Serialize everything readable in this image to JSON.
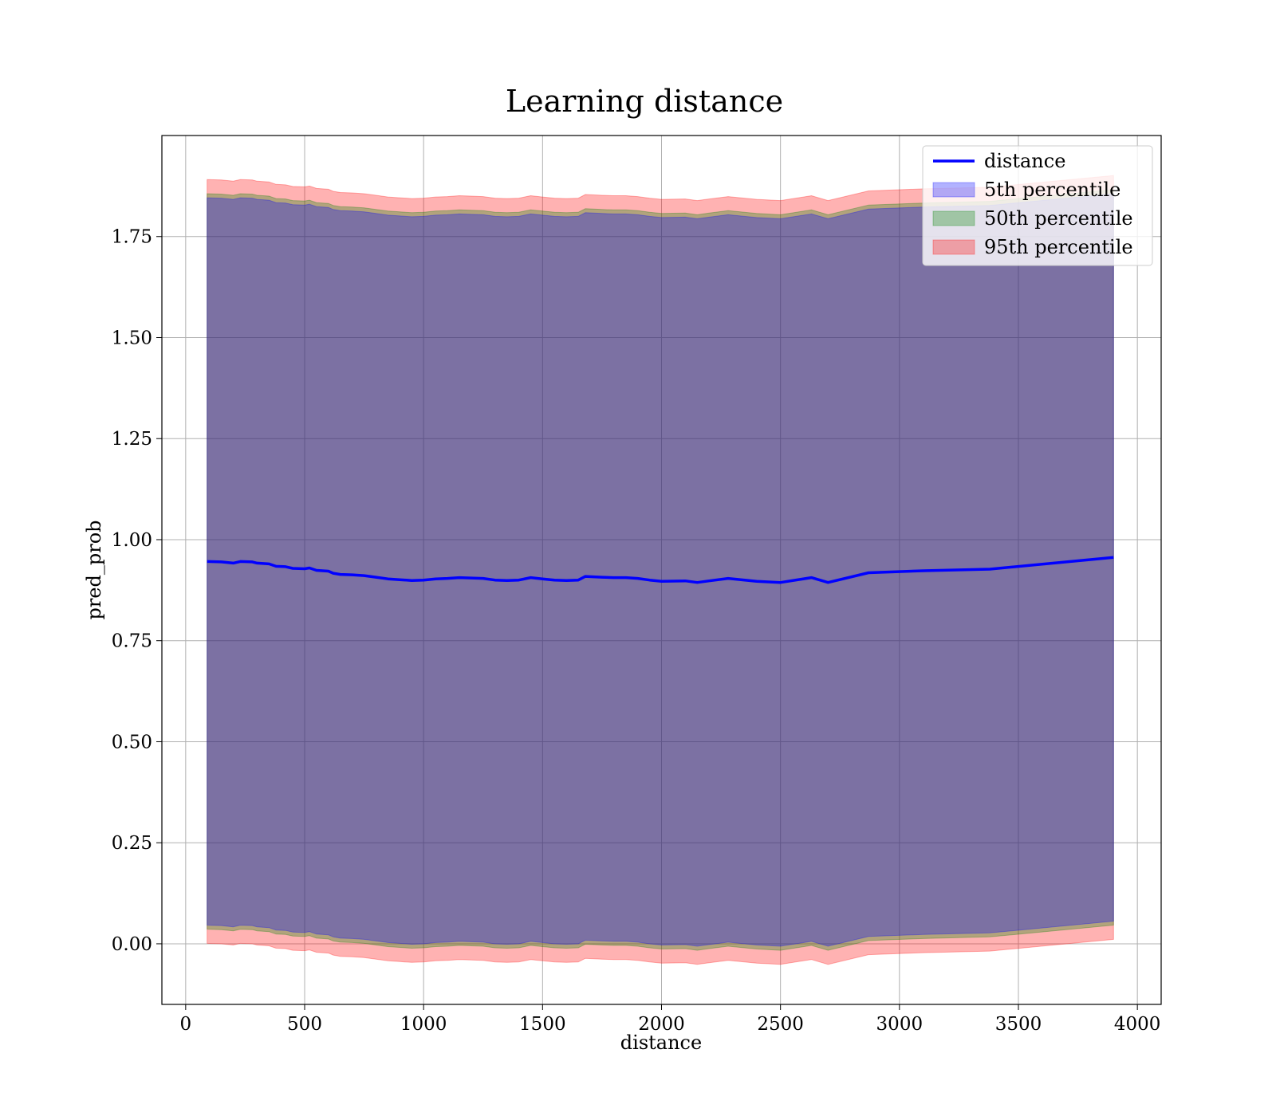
{
  "chart_data": {
    "type": "line",
    "title": "Learning distance",
    "xlabel": "distance",
    "ylabel": "pred_prob",
    "xlim": [
      -100,
      4100
    ],
    "ylim": [
      -0.15,
      2.0
    ],
    "xticks": [
      0,
      500,
      1000,
      1500,
      2000,
      2500,
      3000,
      3500,
      4000
    ],
    "xtick_labels": [
      "0",
      "500",
      "1000",
      "1500",
      "2000",
      "2500",
      "3000",
      "3500",
      "4000"
    ],
    "yticks": [
      0.0,
      0.25,
      0.5,
      0.75,
      1.0,
      1.25,
      1.5,
      1.75
    ],
    "ytick_labels": [
      "0.00",
      "0.25",
      "0.50",
      "0.75",
      "1.00",
      "1.25",
      "1.50",
      "1.75"
    ],
    "grid": true,
    "legend_position": "top-right",
    "x": [
      90,
      150,
      200,
      230,
      280,
      300,
      350,
      380,
      420,
      450,
      500,
      520,
      550,
      600,
      620,
      650,
      700,
      750,
      800,
      850,
      900,
      950,
      1000,
      1050,
      1100,
      1150,
      1200,
      1250,
      1300,
      1350,
      1400,
      1450,
      1500,
      1550,
      1600,
      1650,
      1680,
      1750,
      1800,
      1850,
      1900,
      1950,
      2000,
      2100,
      2150,
      2200,
      2280,
      2400,
      2500,
      2630,
      2700,
      2870,
      3100,
      3380,
      3900
    ],
    "series": [
      {
        "name": "distance",
        "kind": "line",
        "color": "#0000ff",
        "values": [
          0.946,
          0.945,
          0.942,
          0.946,
          0.945,
          0.942,
          0.94,
          0.934,
          0.933,
          0.929,
          0.928,
          0.93,
          0.924,
          0.922,
          0.917,
          0.914,
          0.913,
          0.911,
          0.907,
          0.903,
          0.901,
          0.899,
          0.9,
          0.903,
          0.904,
          0.906,
          0.905,
          0.904,
          0.9,
          0.899,
          0.9,
          0.906,
          0.903,
          0.9,
          0.899,
          0.9,
          0.909,
          0.907,
          0.906,
          0.906,
          0.904,
          0.9,
          0.897,
          0.898,
          0.894,
          0.898,
          0.904,
          0.897,
          0.894,
          0.906,
          0.894,
          0.918,
          0.923,
          0.927,
          0.956
        ]
      },
      {
        "name": "5th percentile",
        "kind": "band",
        "color": "#0000ff",
        "offset": [
          0.9,
          0.9
        ]
      },
      {
        "name": "50th percentile",
        "kind": "band",
        "color": "#008000",
        "offset": [
          0.91,
          0.91
        ]
      },
      {
        "name": "95th percentile",
        "kind": "band",
        "color": "#ff0000",
        "offset": [
          0.945,
          0.945
        ]
      }
    ]
  }
}
